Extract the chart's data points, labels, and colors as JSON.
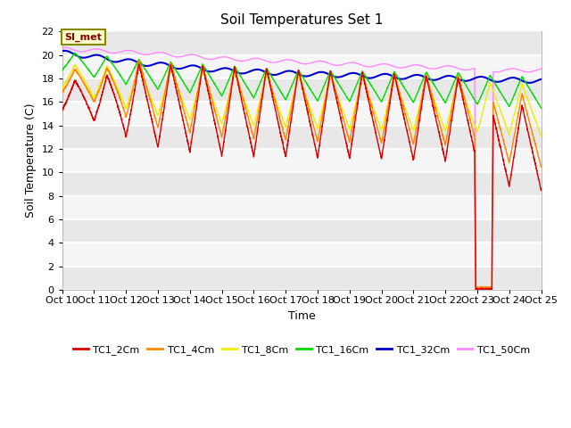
{
  "title": "Soil Temperatures Set 1",
  "xlabel": "Time",
  "ylabel": "Soil Temperature (C)",
  "ylim": [
    0,
    22
  ],
  "xlim": [
    0,
    360
  ],
  "yticks": [
    0,
    2,
    4,
    6,
    8,
    10,
    12,
    14,
    16,
    18,
    20,
    22
  ],
  "xtick_positions": [
    0,
    24,
    48,
    72,
    96,
    120,
    144,
    168,
    192,
    216,
    240,
    264,
    288,
    312,
    336,
    360
  ],
  "xtick_labels": [
    "Oct 10",
    "Oct 11",
    "Oct 12",
    "Oct 13",
    "Oct 14",
    "Oct 15",
    "Oct 16",
    "Oct 17",
    "Oct 18",
    "Oct 19",
    "Oct 20",
    "Oct 21",
    "Oct 22",
    "Oct 23",
    "Oct 24",
    "Oct 25"
  ],
  "legend_labels": [
    "TC1_2Cm",
    "TC1_4Cm",
    "TC1_8Cm",
    "TC1_16Cm",
    "TC1_32Cm",
    "TC1_50Cm"
  ],
  "colors": {
    "TC1_2Cm": "#dd0000",
    "TC1_4Cm": "#ff8800",
    "TC1_8Cm": "#eeee00",
    "TC1_16Cm": "#00dd00",
    "TC1_32Cm": "#0000cc",
    "TC1_50Cm": "#ff88ff"
  },
  "fig_bg": "#ffffff",
  "plot_bg_light": "#f0f0f0",
  "plot_bg_dark": "#e0e0e0",
  "annotation_text": "SI_met",
  "annotation_bg": "#ffffcc",
  "annotation_border": "#888800"
}
